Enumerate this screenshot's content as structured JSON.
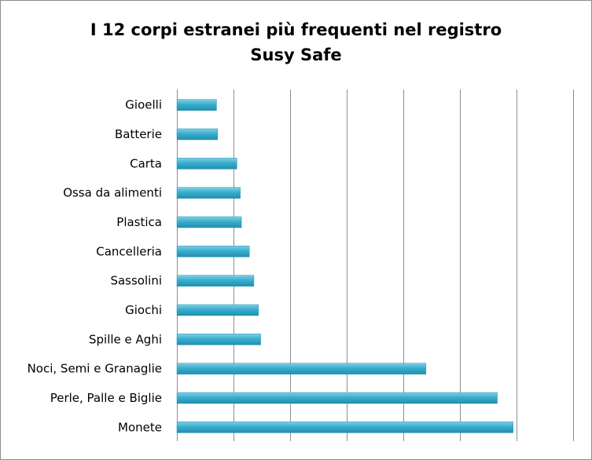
{
  "chart_data": {
    "type": "bar",
    "orientation": "horizontal",
    "title_lines": [
      "I 12 corpi estranei più frequenti nel registro",
      "Susy Safe"
    ],
    "categories": [
      "Gioelli",
      "Batterie",
      "Carta",
      "Ossa da alimenti",
      "Plastica",
      "Cancelleria",
      "Sassolini",
      "Giochi",
      "Spille e Aghi",
      "Noci, Semi e Granaglie",
      "Perle, Palle e Biglie",
      "Monete"
    ],
    "values": [
      35,
      36,
      53,
      56,
      57,
      64,
      68,
      72,
      74,
      220,
      283,
      297
    ],
    "xlim": [
      0,
      350
    ],
    "x_tick_step": 50,
    "x_tick_labels_shown": false,
    "grid": "vertical",
    "legend": "none",
    "bar_color": "#36a9c9"
  }
}
